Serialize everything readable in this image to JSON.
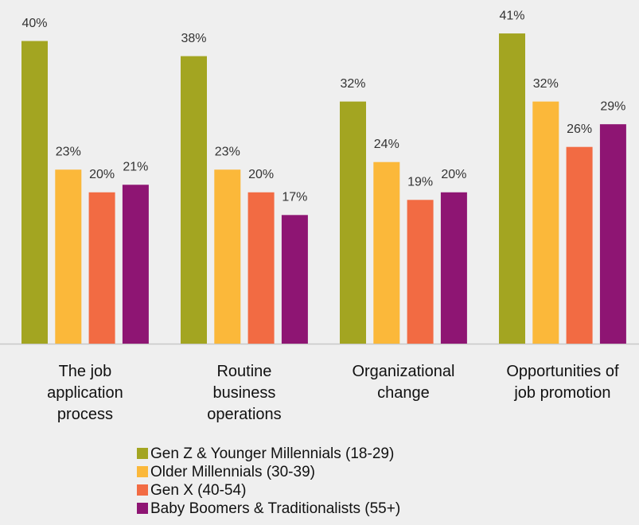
{
  "chart_data": {
    "type": "bar",
    "categories": [
      "The job\napplication\nprocess",
      "Routine\nbusiness\noperations",
      "Organizational\nchange",
      "Opportunities of\njob promotion"
    ],
    "series": [
      {
        "name": "Gen Z & Younger Millennials (18-29)",
        "color": "#a3a521",
        "values": [
          40,
          38,
          32,
          41
        ],
        "value_labels": [
          "40%",
          "38%",
          "32%",
          "41%"
        ]
      },
      {
        "name": "Older Millennials (30-39)",
        "color": "#fbb83a",
        "values": [
          23,
          23,
          24,
          32
        ],
        "value_labels": [
          "23%",
          "23%",
          "24%",
          "32%"
        ]
      },
      {
        "name": "Gen X (40-54)",
        "color": "#f26b43",
        "values": [
          20,
          20,
          19,
          26
        ],
        "value_labels": [
          "20%",
          "20%",
          "19%",
          "26%"
        ]
      },
      {
        "name": "Baby Boomers & Traditionalists (55+)",
        "color": "#8e1573",
        "values": [
          21,
          17,
          20,
          29
        ],
        "value_labels": [
          "21%",
          "17%",
          "20%",
          "29%"
        ]
      }
    ],
    "ylim": [
      0,
      45
    ],
    "legend": "bottom"
  }
}
